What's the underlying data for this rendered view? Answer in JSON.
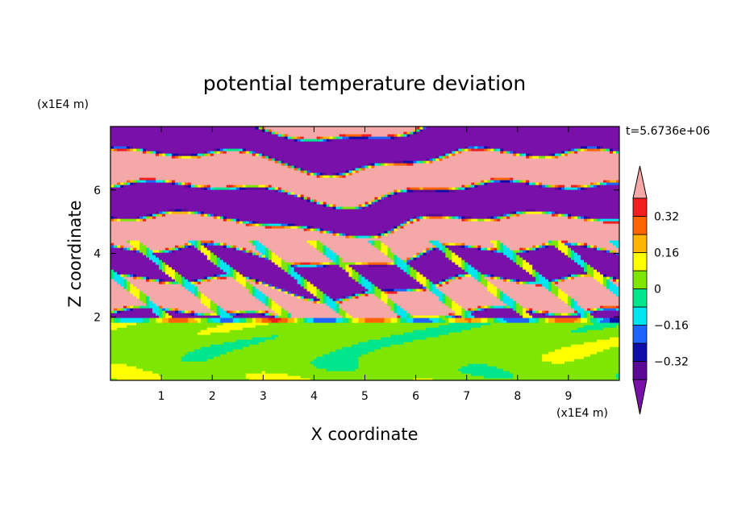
{
  "chart_data": {
    "type": "heatmap",
    "title": "potential temperature deviation",
    "xlabel": "X coordinate",
    "ylabel": "Z coordinate",
    "x_unit": "(x1E4 m)",
    "y_unit": "(x1E4 m)",
    "time_label": "t=5.6736e+06",
    "xlim": [
      0,
      10
    ],
    "ylim": [
      0,
      8
    ],
    "x_ticks": [
      1,
      2,
      3,
      4,
      5,
      6,
      7,
      8,
      9
    ],
    "y_ticks": [
      2,
      4,
      6
    ],
    "colorbar": {
      "levels": [
        -0.4,
        -0.32,
        -0.24,
        -0.16,
        -0.08,
        0,
        0.08,
        0.16,
        0.24,
        0.32,
        0.4
      ],
      "colors": [
        "#5a0a96",
        "#0e0ea8",
        "#1e64ff",
        "#00e6f0",
        "#00e68c",
        "#7ee600",
        "#ffff00",
        "#ffb400",
        "#ff6400",
        "#f01e1e"
      ],
      "under_color": "#7a10aa",
      "over_color": "#f4a8a8",
      "tick_labels": [
        "0.32",
        "0.16",
        "0",
        "−0.16",
        "−0.32"
      ],
      "tick_values": [
        0.32,
        0.16,
        0,
        -0.16,
        -0.32
      ]
    },
    "field_description_regions": [
      {
        "z_range": [
          0,
          2
        ],
        "values_typical": [
          0,
          0.08
        ]
      },
      {
        "z_range": [
          2,
          4.5
        ],
        "values_typical": [
          -0.4,
          0.4
        ]
      },
      {
        "z_range": [
          4.5,
          8
        ],
        "values_typical": [
          -0.4,
          0.4
        ]
      }
    ]
  }
}
